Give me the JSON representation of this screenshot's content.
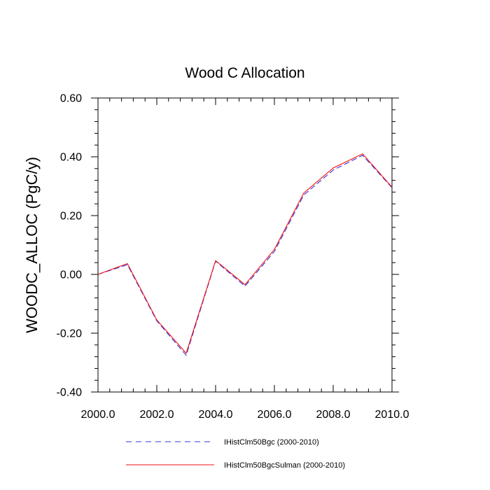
{
  "chart_data": {
    "type": "line",
    "title": "Wood C Allocation",
    "xlabel": "",
    "ylabel": "WOODC_ALLOC  (PgC/y)",
    "xlim": [
      2000,
      2010
    ],
    "ylim": [
      -0.4,
      0.6
    ],
    "x_ticks": [
      2000,
      2002,
      2004,
      2006,
      2008,
      2010
    ],
    "x_tick_labels": [
      "2000.0",
      "2002.0",
      "2004.0",
      "2006.0",
      "2008.0",
      "2010.0"
    ],
    "y_ticks": [
      -0.4,
      -0.2,
      0.0,
      0.2,
      0.4,
      0.6
    ],
    "y_tick_labels": [
      "-0.40",
      "-0.20",
      "0.00",
      "0.20",
      "0.40",
      "0.60"
    ],
    "x": [
      2000,
      2001,
      2002,
      2003,
      2004,
      2005,
      2006,
      2007,
      2008,
      2009,
      2010
    ],
    "series": [
      {
        "name": "IHistClm50Bgc (2000-2010)",
        "color": "#3333dd",
        "dash": "dashed",
        "values": [
          0.0,
          0.033,
          -0.158,
          -0.275,
          0.045,
          -0.04,
          0.078,
          0.27,
          0.355,
          0.405,
          0.295
        ]
      },
      {
        "name": "IHistClm50BgcSulman (2000-2010)",
        "color": "#ee1111",
        "dash": "solid",
        "values": [
          0.0,
          0.037,
          -0.155,
          -0.268,
          0.047,
          -0.035,
          0.085,
          0.277,
          0.362,
          0.41,
          0.297
        ]
      }
    ],
    "grid": false,
    "legend_position": "bottom"
  }
}
